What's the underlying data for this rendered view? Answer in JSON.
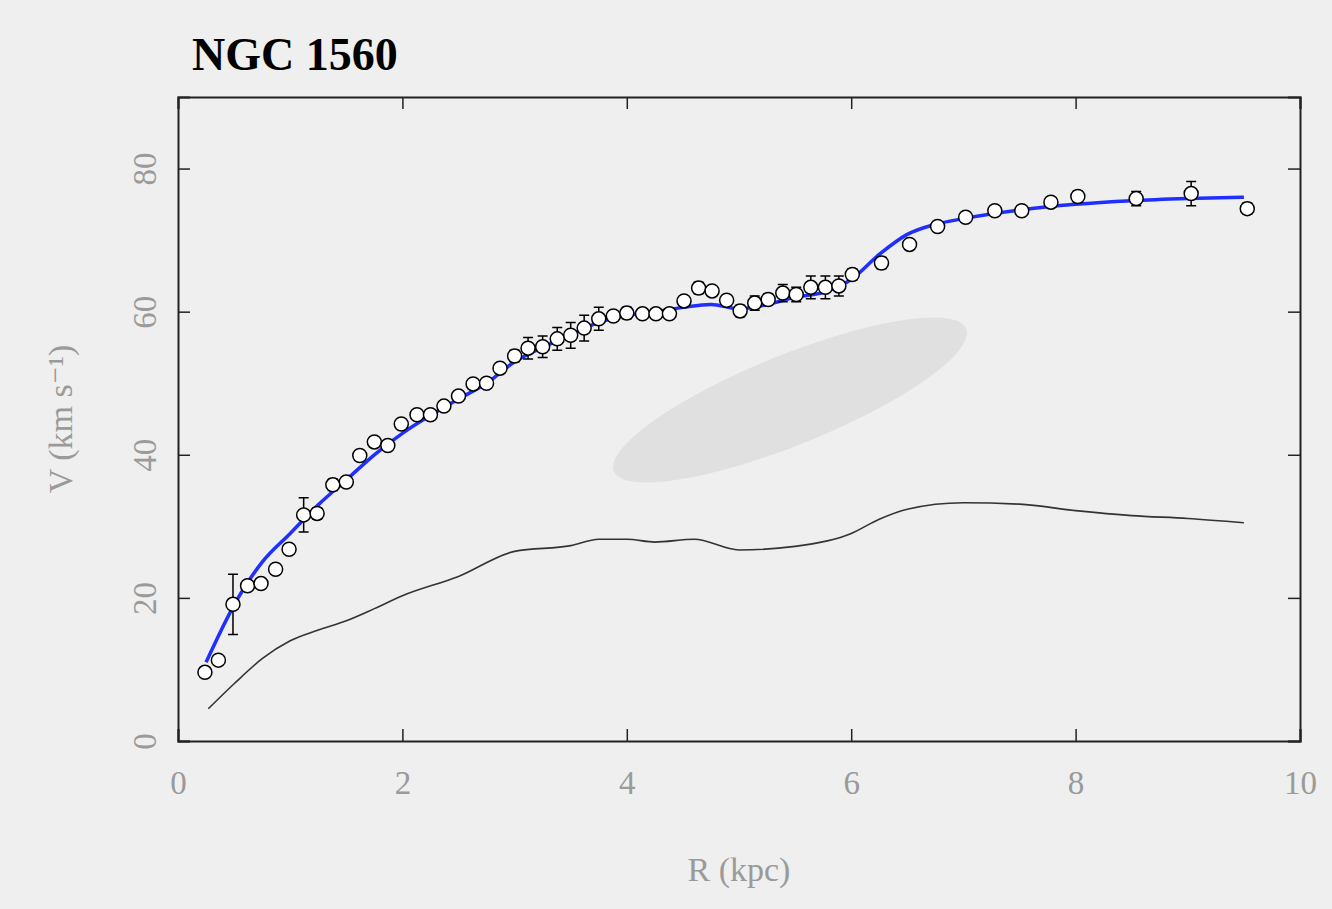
{
  "chart_data": {
    "type": "scatter",
    "title": "NGC 1560",
    "x_label": "R (kpc)",
    "y_label": "V (km s⁻¹)",
    "xlim": [
      0,
      10
    ],
    "ylim": [
      0,
      90
    ],
    "xticks": [
      0,
      2,
      4,
      6,
      8,
      10
    ],
    "yticks": [
      0,
      20,
      40,
      60,
      80
    ],
    "grid": false,
    "series": [
      {
        "type": "scatter",
        "color": "#000000",
        "marker": "circle",
        "x": [
          0.24,
          0.36,
          0.49,
          0.62,
          0.74,
          0.87,
          0.99,
          1.12,
          1.24,
          1.38,
          1.5,
          1.62,
          1.75,
          1.87,
          1.99,
          2.13,
          2.25,
          2.37,
          2.5,
          2.63,
          2.75,
          2.87,
          3.0,
          3.12,
          3.25,
          3.38,
          3.5,
          3.62,
          3.75,
          3.88,
          4.0,
          4.14,
          4.26,
          4.38,
          4.51,
          4.64,
          4.76,
          4.89,
          5.01,
          5.14,
          5.26,
          5.39,
          5.51,
          5.64,
          5.77,
          5.89,
          6.01,
          6.27,
          6.52,
          6.77,
          7.02,
          7.28,
          7.52,
          7.78,
          8.02,
          8.54,
          9.03,
          9.53
        ],
        "values": [
          9.6,
          11.3,
          19.1,
          21.7,
          22.0,
          24.0,
          26.8,
          31.6,
          31.8,
          35.8,
          36.2,
          39.9,
          41.8,
          41.3,
          44.3,
          45.6,
          45.6,
          46.8,
          48.2,
          49.9,
          50.0,
          52.1,
          53.8,
          54.9,
          55.1,
          56.2,
          56.7,
          57.7,
          59.0,
          59.4,
          59.8,
          59.7,
          59.7,
          59.7,
          61.5,
          63.3,
          62.9,
          61.6,
          60.1,
          61.2,
          61.7,
          62.6,
          62.4,
          63.4,
          63.4,
          63.6,
          65.2,
          66.8,
          69.4,
          71.9,
          73.2,
          74.1,
          74.1,
          75.3,
          76.1,
          75.8,
          76.5,
          74.4
        ],
        "errors": [
          0.6,
          0.6,
          4.2,
          0.6,
          0.6,
          0.6,
          0.6,
          2.4,
          0.8,
          0.8,
          0.6,
          0.6,
          0.6,
          0.6,
          0.6,
          0.6,
          0.6,
          0.6,
          0.6,
          0.6,
          0.6,
          0.6,
          0.8,
          1.5,
          1.5,
          1.6,
          1.8,
          1.8,
          1.6,
          0.6,
          0.8,
          0.6,
          0.6,
          0.6,
          0.6,
          0.8,
          0.6,
          0.6,
          0.8,
          1.0,
          0.8,
          1.2,
          1.0,
          1.6,
          1.6,
          1.4,
          0.8,
          0.8,
          0.6,
          0.6,
          0.6,
          0.6,
          0.6,
          0.6,
          0.8,
          1.0,
          1.7,
          0.8
        ]
      },
      {
        "type": "line",
        "color": "#1f2fff",
        "line_style": "solid",
        "x": [
          0.25,
          0.5,
          0.75,
          1.0,
          1.25,
          1.5,
          1.75,
          2.0,
          2.25,
          2.5,
          2.75,
          3.0,
          3.25,
          3.5,
          3.75,
          4.0,
          4.25,
          4.5,
          4.75,
          5.0,
          5.25,
          5.5,
          5.75,
          6.0,
          6.25,
          6.5,
          6.75,
          7.0,
          7.5,
          8.0,
          8.5,
          9.0,
          9.5
        ],
        "values": [
          11,
          19,
          25,
          29,
          33,
          36.5,
          40,
          43,
          45.5,
          47.8,
          50,
          53,
          55,
          56.8,
          58.5,
          59.5,
          60,
          60.6,
          61,
          60.4,
          61,
          62,
          62.7,
          64.5,
          68,
          70.8,
          72.2,
          73,
          74.2,
          75,
          75.5,
          75.8,
          76
        ]
      },
      {
        "type": "line",
        "color": "#333333",
        "line_style": "solid",
        "x": [
          0.27,
          0.5,
          0.75,
          1.0,
          1.25,
          1.5,
          1.75,
          2.0,
          2.5,
          3.0,
          3.5,
          3.75,
          4.0,
          4.25,
          4.6,
          5.0,
          5.5,
          6.0,
          6.25,
          6.5,
          7.0,
          7.5,
          8.0,
          8.5,
          9.0,
          9.5
        ],
        "values": [
          4.5,
          8,
          11.5,
          14,
          15.5,
          16.8,
          18.5,
          20.3,
          23,
          26.5,
          27.3,
          28.2,
          28.2,
          27.8,
          28.2,
          26.7,
          27.2,
          29,
          31,
          32.4,
          33.3,
          33.1,
          32.2,
          31.5,
          31.1,
          30.5
        ]
      }
    ]
  }
}
